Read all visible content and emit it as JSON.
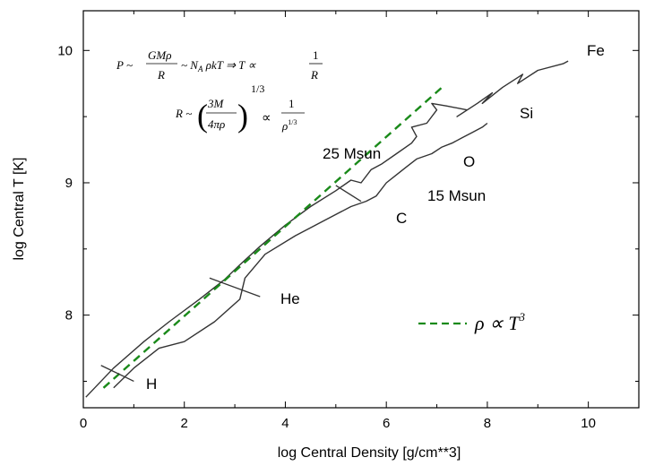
{
  "chart_data": {
    "type": "line",
    "title": "",
    "xlabel": "log Central Density [g/cm**3]",
    "ylabel": "log Central T [K]",
    "xlim": [
      0,
      11
    ],
    "ylim": [
      7.3,
      10.3
    ],
    "x_ticks": [
      "0",
      "2",
      "4",
      "6",
      "8",
      "10"
    ],
    "y_ticks": [
      "8",
      "9",
      "10"
    ],
    "series": [
      {
        "name": "25 Msun",
        "color": "#333333",
        "x": [
          0.05,
          0.6,
          1.2,
          1.7,
          2.3,
          2.8,
          3.1,
          3.5,
          4.0,
          4.5,
          5.0,
          5.3,
          5.5,
          5.7,
          5.9,
          6.2,
          6.5,
          6.6,
          6.5,
          6.8,
          7.0,
          6.9,
          7.2,
          7.6,
          7.4,
          7.8,
          8.1,
          7.9,
          8.3,
          8.7,
          8.6,
          9.0,
          9.5,
          9.6
        ],
        "y": [
          7.38,
          7.6,
          7.8,
          7.95,
          8.12,
          8.27,
          8.38,
          8.52,
          8.68,
          8.82,
          8.94,
          9.02,
          9.0,
          9.1,
          9.14,
          9.22,
          9.3,
          9.35,
          9.42,
          9.45,
          9.55,
          9.6,
          9.58,
          9.55,
          9.5,
          9.6,
          9.68,
          9.6,
          9.72,
          9.82,
          9.75,
          9.85,
          9.9,
          9.92
        ]
      },
      {
        "name": "15 Msun",
        "color": "#333333",
        "x": [
          0.6,
          1.0,
          1.5,
          2.0,
          2.6,
          3.1,
          3.2,
          3.6,
          4.2,
          4.8,
          5.3,
          5.6,
          5.8,
          6.0,
          6.2,
          6.4,
          6.6,
          6.9,
          7.1,
          7.3,
          7.5,
          7.7,
          7.9,
          8.0
        ],
        "y": [
          7.45,
          7.6,
          7.75,
          7.8,
          7.95,
          8.12,
          8.28,
          8.46,
          8.6,
          8.72,
          8.82,
          8.86,
          8.9,
          9.0,
          9.06,
          9.12,
          9.18,
          9.22,
          9.27,
          9.3,
          9.34,
          9.38,
          9.42,
          9.45
        ]
      },
      {
        "name": "ρ ∝ T³",
        "color": "#1a8a1a",
        "style": "dashed",
        "x": [
          0.4,
          7.1
        ],
        "y": [
          7.45,
          9.72
        ]
      }
    ],
    "annotations": [
      {
        "text": "H",
        "x": 1.25,
        "y": 7.45
      },
      {
        "text": "He",
        "x": 3.8,
        "y": 8.13
      },
      {
        "text": "C",
        "x": 6.2,
        "y": 8.73
      },
      {
        "text": "O",
        "x": 7.4,
        "y": 9.14
      },
      {
        "text": "Si",
        "x": 8.7,
        "y": 9.48
      },
      {
        "text": "Fe",
        "x": 10.1,
        "y": 9.98
      },
      {
        "text": "25 Msun",
        "x": 4.6,
        "y": 9.18
      },
      {
        "text": "15 Msun",
        "x": 6.9,
        "y": 8.86
      }
    ],
    "legend": {
      "text": "ρ ∝ T³",
      "placement": "right"
    },
    "equations": {
      "line1": "P ~ GMρ/R ~ N_A ρkT ⇒ T ∝ 1/R",
      "line2": "R ~ (3M/4πρ)^(1/3) ∝ 1/ρ^(1/3)"
    },
    "grid": false
  }
}
